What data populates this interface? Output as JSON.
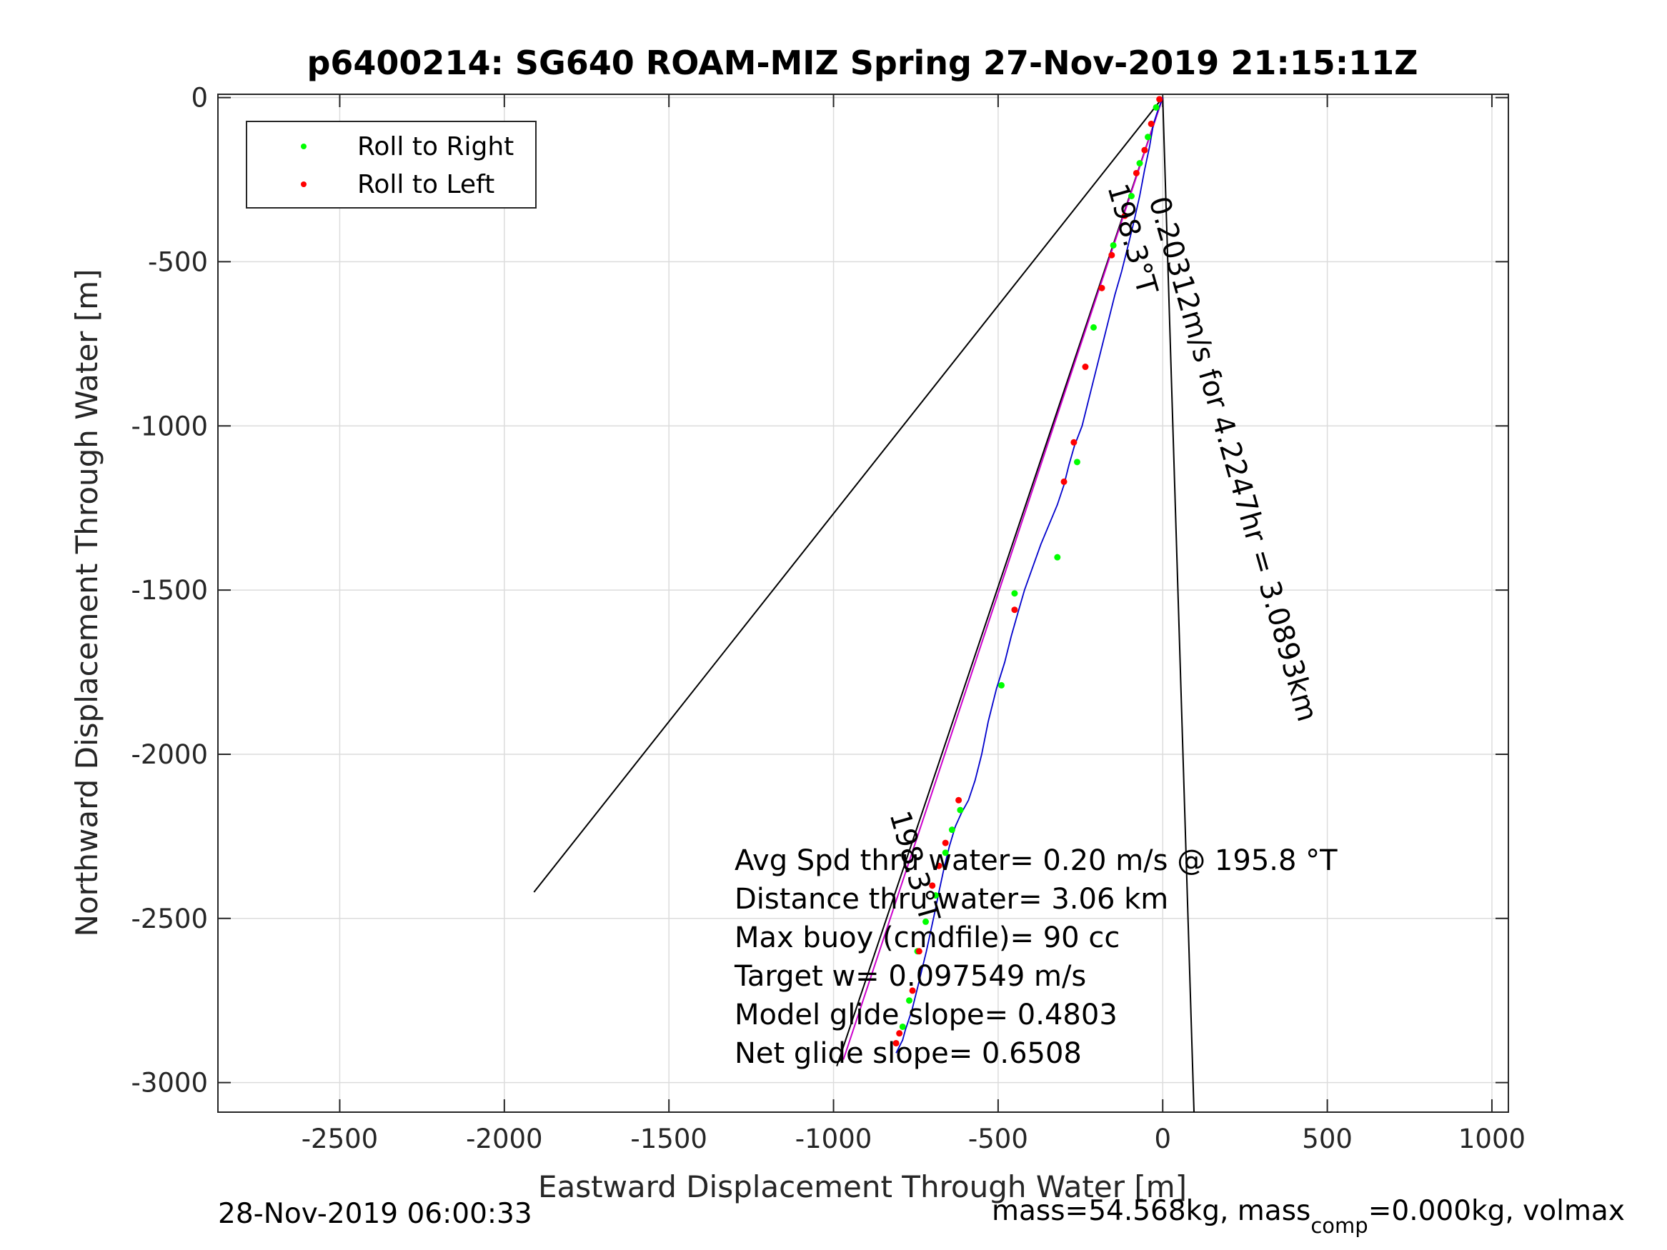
{
  "chart_data": {
    "type": "line",
    "title": "p6400214: SG640 ROAM-MIZ Spring 27-Nov-2019 21:15:11Z",
    "xlabel": "Eastward Displacement Through Water [m]",
    "ylabel": "Northward Displacement Through Water [m]",
    "xlim": [
      -2870,
      1050
    ],
    "ylim": [
      -3090,
      10
    ],
    "xticks": [
      -2500,
      -2000,
      -1500,
      -1000,
      -500,
      0,
      500,
      1000
    ],
    "yticks": [
      0,
      -500,
      -1000,
      -1500,
      -2000,
      -2500,
      -3000
    ],
    "xtick_labels": [
      "-2500",
      "-2000",
      "-1500",
      "-1000",
      "-500",
      "0",
      "500",
      "1000"
    ],
    "ytick_labels": [
      "0",
      "-500",
      "-1000",
      "-1500",
      "-2000",
      "-2500",
      "-3000"
    ],
    "grid": true,
    "legend": {
      "position": "top-left",
      "entries": [
        {
          "label": "Roll to Right",
          "color": "#00ff00"
        },
        {
          "label": "Roll to Left",
          "color": "#ff0000"
        }
      ]
    },
    "colors": {
      "track": "#0000cc",
      "heading_line": "#cc00cc",
      "wedge": "#000000",
      "roll_right": "#00ff00",
      "roll_left": "#ff0000"
    },
    "track": {
      "x": [
        0,
        -15,
        -28,
        -40,
        -55,
        -70,
        -88,
        -105,
        -125,
        -145,
        -165,
        -185,
        -205,
        -225,
        -245,
        -268,
        -285,
        -300,
        -320,
        -345,
        -370,
        -395,
        -420,
        -440,
        -460,
        -480,
        -505,
        -530,
        -550,
        -570,
        -590,
        -612,
        -630,
        -648,
        -665,
        -680,
        -692,
        -705,
        -718,
        -730,
        -742,
        -752,
        -762,
        -772,
        -782,
        -790,
        -800,
        -810
      ],
      "y": [
        0,
        -40,
        -80,
        -150,
        -220,
        -300,
        -380,
        -450,
        -530,
        -600,
        -680,
        -760,
        -840,
        -920,
        -1000,
        -1060,
        -1120,
        -1180,
        -1240,
        -1300,
        -1360,
        -1430,
        -1500,
        -1570,
        -1640,
        -1720,
        -1800,
        -1900,
        -2000,
        -2080,
        -2140,
        -2180,
        -2220,
        -2280,
        -2350,
        -2420,
        -2480,
        -2540,
        -2600,
        -2650,
        -2700,
        -2740,
        -2780,
        -2810,
        -2840,
        -2870,
        -2890,
        -2910
      ]
    },
    "roll_right_points": {
      "x": [
        -20,
        -45,
        -70,
        -95,
        -150,
        -210,
        -260,
        -320,
        -450,
        -490,
        -615,
        -640,
        -660,
        -690,
        -720,
        -745,
        -770,
        -790
      ],
      "y": [
        -30,
        -120,
        -200,
        -300,
        -450,
        -700,
        -1110,
        -1400,
        -1510,
        -1790,
        -2170,
        -2230,
        -2300,
        -2430,
        -2510,
        -2600,
        -2750,
        -2830
      ]
    },
    "roll_left_points": {
      "x": [
        -10,
        -35,
        -55,
        -80,
        -115,
        -155,
        -185,
        -235,
        -270,
        -300,
        -450,
        -620,
        -660,
        -680,
        -700,
        -740,
        -760,
        -800,
        -810
      ],
      "y": [
        -5,
        -80,
        -160,
        -230,
        -360,
        -480,
        -580,
        -820,
        -1050,
        -1170,
        -1560,
        -2140,
        -2270,
        -2340,
        -2400,
        -2600,
        -2720,
        -2850,
        -2880
      ]
    },
    "heading_line": {
      "x": [
        0,
        -970
      ],
      "y": [
        0,
        -2930
      ]
    },
    "wedge_lines": [
      {
        "x": [
          0,
          -1910
        ],
        "y": [
          0,
          -2420
        ]
      },
      {
        "x": [
          0,
          95
        ],
        "y": [
          0,
          -3090
        ]
      },
      {
        "x": [
          0,
          -990
        ],
        "y": [
          0,
          -2950
        ]
      }
    ],
    "annotations": [
      {
        "text": "0.20312m/s for 4.2247hr = 3.0893km"
      },
      {
        "text": "198.3°T"
      },
      {
        "text": "198.3°T"
      }
    ],
    "stats": [
      "Avg Spd thru water=  0.20 m/s @ 195.8 °T",
      "Distance thru water=  3.06 km",
      "Max buoy (cmdfile)= 90 cc",
      "Target w= 0.097549 m/s",
      "Model glide slope= 0.4803",
      "Net glide slope= 0.6508"
    ],
    "footer_left": "28-Nov-2019 06:00:33",
    "footer_right_prefix": "mass=54.568kg, mass",
    "footer_right_sub": "comp",
    "footer_right_suffix": "=0.000kg, volmax"
  }
}
